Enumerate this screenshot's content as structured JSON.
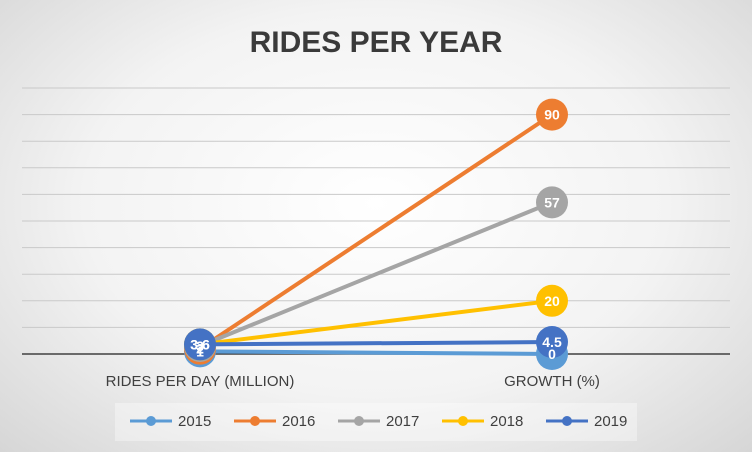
{
  "chart_data": {
    "type": "line",
    "title": "RIDES PER YEAR",
    "categories": [
      "RIDES PER DAY (MILLION)",
      "GROWTH (%)"
    ],
    "ylim": [
      0,
      100
    ],
    "grid": true,
    "legend_position": "bottom",
    "series": [
      {
        "name": "2015",
        "values": [
          1,
          0
        ],
        "color": "#5B9BD5"
      },
      {
        "name": "2016",
        "values": [
          2,
          90
        ],
        "color": "#ED7D31"
      },
      {
        "name": "2017",
        "values": [
          3,
          57
        ],
        "color": "#A5A5A5"
      },
      {
        "name": "2018",
        "values": [
          3.6,
          20
        ],
        "color": "#FFC000"
      },
      {
        "name": "2019",
        "values": [
          3.6,
          4.5
        ],
        "color": "#4472C4"
      }
    ],
    "data_labels": [
      [
        "1",
        "0"
      ],
      [
        "2",
        "90"
      ],
      [
        "3",
        "57"
      ],
      [
        "3.6",
        "20"
      ],
      [
        "3.6",
        "4.5"
      ]
    ]
  }
}
